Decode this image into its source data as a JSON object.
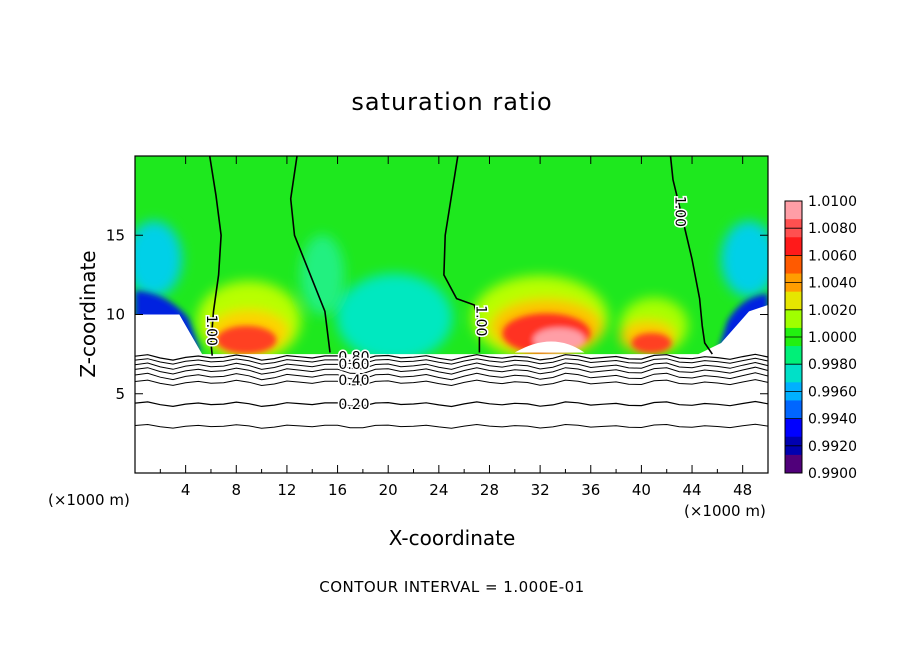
{
  "chart_data": {
    "type": "contour",
    "title": "saturation ratio",
    "xlabel": "X-coordinate",
    "ylabel": "Z-coordinate",
    "x_unit": "(×1000 m)",
    "footer": "CONTOUR INTERVAL = 1.000E-01",
    "xlim": [
      0,
      50
    ],
    "ylim": [
      0,
      20
    ],
    "x_ticks": [
      4,
      8,
      12,
      16,
      20,
      24,
      28,
      32,
      36,
      40,
      44,
      48
    ],
    "y_ticks": [
      5,
      10,
      15
    ],
    "colorbar": {
      "labels": [
        "1.0100",
        "1.0080",
        "1.0060",
        "1.0040",
        "1.0020",
        "1.0000",
        "0.9980",
        "0.9960",
        "0.9940",
        "0.9920",
        "0.9900"
      ],
      "colors": [
        "#ff9ea6",
        "#ff5050",
        "#ff1a1a",
        "#ff5a00",
        "#ff9d00",
        "#e6e600",
        "#a0ff00",
        "#22f010",
        "#00f078",
        "#00e0c8",
        "#00b0ff",
        "#0066ff",
        "#0000ff",
        "#0000b0",
        "#50007a"
      ],
      "range": [
        0.99,
        1.01
      ]
    },
    "contour_labels": [
      {
        "text": "1.00",
        "x": 6.0,
        "z": 9.0
      },
      {
        "text": "1.00",
        "x": 27.3,
        "z": 9.6
      },
      {
        "text": "1.00",
        "x": 43.0,
        "z": 16.5
      },
      {
        "text": "0.80",
        "x": 17.3,
        "z": 7.3
      },
      {
        "text": "0.60",
        "x": 17.3,
        "z": 6.8
      },
      {
        "text": "0.40",
        "x": 17.3,
        "z": 5.8
      },
      {
        "text": "0.20",
        "x": 17.3,
        "z": 4.3
      }
    ],
    "contour_levels": [
      0.2,
      0.4,
      0.6,
      0.8,
      1.0
    ]
  }
}
